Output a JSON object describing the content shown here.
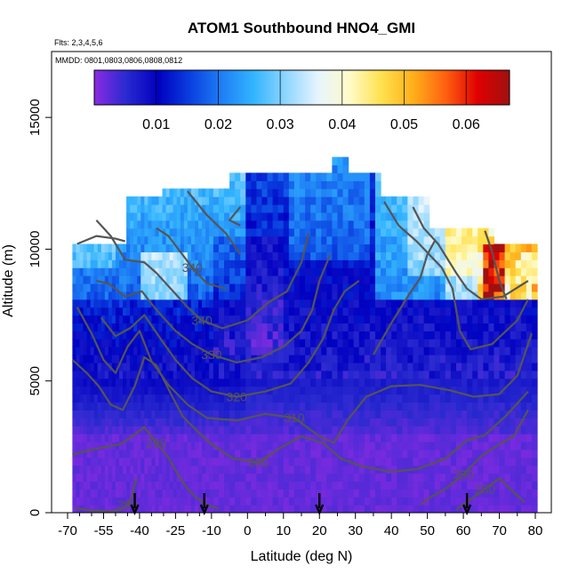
{
  "chart_data": {
    "type": "heatmap",
    "title": "ATOM1 Southbound HNO4_GMI",
    "subtitle_lines": [
      "Flts: 2,3,4,5,6",
      "MMDD: 0801,0803,0806,0808,0812"
    ],
    "xlabel": "Latitude (deg N)",
    "ylabel": "Altitude (m)",
    "xlim": [
      -70,
      80
    ],
    "ylim": [
      0,
      17500
    ],
    "x_ticks": [
      -70,
      -55,
      -40,
      -25,
      -10,
      0,
      10,
      20,
      30,
      40,
      50,
      60,
      70,
      80
    ],
    "y_ticks": [
      0,
      5000,
      10000,
      15000
    ],
    "colorbar": {
      "range": [
        0,
        0.067
      ],
      "ticks": [
        0.01,
        0.02,
        0.03,
        0.04,
        0.05,
        0.06
      ],
      "tick_labels": [
        "0.01",
        "0.02",
        "0.03",
        "0.04",
        "0.05",
        "0.06"
      ],
      "colors": [
        "#8a2be2",
        "#2a2ad0",
        "#0000c0",
        "#0a3fe0",
        "#1e7ff5",
        "#33b5ff",
        "#8fd6ff",
        "#e6f4ff",
        "#fffbc8",
        "#ffe14d",
        "#ffae1a",
        "#ff6010",
        "#e00000",
        "#a01010"
      ]
    },
    "flight_markers_lat": [
      -42,
      -13,
      20,
      61
    ],
    "contours": [
      {
        "label": "280",
        "points": [
          [
            -67,
            180
          ],
          [
            -60,
            80
          ],
          [
            -52,
            40
          ],
          [
            -48,
            120
          ],
          [
            -45,
            300
          ],
          [
            -43,
            650
          ],
          [
            -42,
            1100
          ],
          [
            -41,
            1300
          ]
        ]
      },
      {
        "label": "280",
        "points": [
          [
            77,
            400
          ],
          [
            73,
            900
          ],
          [
            70,
            1300
          ],
          [
            66,
            900
          ],
          [
            62,
            500
          ],
          [
            58,
            120
          ]
        ]
      },
      {
        "label": "290",
        "points": [
          [
            -68,
            2200
          ],
          [
            -62,
            2350
          ],
          [
            -54,
            2500
          ],
          [
            -48,
            2600
          ],
          [
            -43,
            2900
          ],
          [
            -38,
            3250
          ],
          [
            -33,
            2650
          ],
          [
            -28,
            2100
          ],
          [
            -24,
            1450
          ],
          [
            -20,
            900
          ],
          [
            -16,
            550
          ],
          [
            -12,
            300
          ],
          [
            -8,
            150
          ]
        ]
      },
      {
        "label": "290",
        "points": [
          [
            78,
            3900
          ],
          [
            74,
            2900
          ],
          [
            70,
            2600
          ],
          [
            65,
            2150
          ],
          [
            60,
            1450
          ],
          [
            55,
            900
          ],
          [
            51,
            600
          ],
          [
            48,
            300
          ]
        ]
      },
      {
        "label": "300",
        "points": [
          [
            -68,
            5800
          ],
          [
            -62,
            5300
          ],
          [
            -57,
            4800
          ],
          [
            -52,
            4100
          ],
          [
            -47,
            3900
          ],
          [
            -42,
            4800
          ],
          [
            -38,
            5900
          ],
          [
            -33,
            5600
          ],
          [
            -28,
            4700
          ],
          [
            -22,
            3650
          ],
          [
            -16,
            3100
          ],
          [
            -10,
            2600
          ],
          [
            -4,
            2050
          ],
          [
            3,
            1900
          ],
          [
            9,
            2450
          ],
          [
            15,
            2900
          ],
          [
            21,
            2650
          ],
          [
            26,
            2050
          ],
          [
            32,
            1750
          ],
          [
            40,
            1550
          ],
          [
            47,
            1650
          ],
          [
            55,
            2050
          ],
          [
            61,
            2750
          ],
          [
            66,
            2950
          ],
          [
            72,
            3700
          ],
          [
            78,
            4600
          ]
        ]
      },
      {
        "label": "310",
        "points": [
          [
            -66,
            7800
          ],
          [
            -60,
            6800
          ],
          [
            -55,
            5800
          ],
          [
            -50,
            5300
          ],
          [
            -45,
            6300
          ],
          [
            -40,
            6900
          ],
          [
            -35,
            5750
          ],
          [
            -28,
            4850
          ],
          [
            -20,
            4100
          ],
          [
            -12,
            3600
          ],
          [
            -3,
            3500
          ],
          [
            5,
            3750
          ],
          [
            13,
            3600
          ],
          [
            20,
            2900
          ],
          [
            24,
            2650
          ],
          [
            28,
            3550
          ],
          [
            33,
            4400
          ],
          [
            40,
            4800
          ],
          [
            48,
            4850
          ],
          [
            56,
            4650
          ],
          [
            63,
            4400
          ],
          [
            70,
            4500
          ],
          [
            75,
            5200
          ],
          [
            79,
            6800
          ]
        ]
      },
      {
        "label": "320",
        "points": [
          [
            -56,
            7400
          ],
          [
            -50,
            6700
          ],
          [
            -44,
            7000
          ],
          [
            -38,
            7500
          ],
          [
            -32,
            6700
          ],
          [
            -25,
            5800
          ],
          [
            -18,
            5100
          ],
          [
            -10,
            4600
          ],
          [
            -3,
            4400
          ],
          [
            5,
            4600
          ],
          [
            12,
            4900
          ],
          [
            17,
            5700
          ],
          [
            21,
            6600
          ],
          [
            24,
            7700
          ],
          [
            27,
            8400
          ],
          [
            31,
            8800
          ]
        ]
      },
      {
        "label": "330",
        "points": [
          [
            -58,
            8800
          ],
          [
            -53,
            8700
          ],
          [
            -46,
            8200
          ],
          [
            -39,
            8400
          ],
          [
            -33,
            7700
          ],
          [
            -25,
            6900
          ],
          [
            -18,
            6400
          ],
          [
            -10,
            6000
          ],
          [
            -3,
            5700
          ],
          [
            4,
            5900
          ],
          [
            10,
            6300
          ],
          [
            15,
            6900
          ],
          [
            18,
            7700
          ],
          [
            20,
            8800
          ],
          [
            23,
            9800
          ]
        ]
      },
      {
        "label": "340",
        "points": [
          [
            -58,
            11100
          ],
          [
            -52,
            10500
          ],
          [
            -46,
            9600
          ],
          [
            -38,
            9500
          ],
          [
            -33,
            9100
          ],
          [
            -27,
            8500
          ],
          [
            -20,
            7800
          ],
          [
            -14,
            7300
          ],
          [
            -7,
            7000
          ],
          [
            0,
            7300
          ],
          [
            6,
            8000
          ],
          [
            11,
            8400
          ],
          [
            15,
            9500
          ],
          [
            17,
            10600
          ]
        ]
      },
      {
        "label": "340",
        "points": [
          [
            -33,
            10800
          ],
          [
            -28,
            10500
          ],
          [
            -23,
            9900
          ],
          [
            -18,
            9300
          ],
          [
            -12,
            8700
          ],
          [
            -6,
            8500
          ]
        ]
      },
      {
        "label": "",
        "points": [
          [
            -20,
            12200
          ],
          [
            -12,
            11300
          ],
          [
            -6,
            10600
          ],
          [
            -2,
            9800
          ]
        ]
      },
      {
        "label": "",
        "points": [
          [
            -2,
            11600
          ],
          [
            -5,
            11100
          ],
          [
            -2,
            10900
          ]
        ]
      },
      {
        "label": "",
        "points": [
          [
            35,
            6000
          ],
          [
            40,
            7200
          ],
          [
            45,
            8300
          ],
          [
            48,
            8900
          ],
          [
            50,
            9800
          ],
          [
            52,
            10300
          ]
        ]
      },
      {
        "label": "",
        "points": [
          [
            38,
            11800
          ],
          [
            42,
            10900
          ],
          [
            47,
            10300
          ],
          [
            54,
            9300
          ],
          [
            57,
            8500
          ],
          [
            59,
            6900
          ],
          [
            62,
            6200
          ],
          [
            68,
            6400
          ],
          [
            75,
            7300
          ],
          [
            78,
            8100
          ]
        ]
      },
      {
        "label": "",
        "points": [
          [
            46,
            11600
          ],
          [
            49,
            10800
          ],
          [
            53,
            10200
          ],
          [
            58,
            9100
          ],
          [
            61,
            8500
          ],
          [
            65,
            8100
          ],
          [
            71,
            8200
          ],
          [
            78,
            8800
          ]
        ]
      },
      {
        "label": "",
        "points": [
          [
            66,
            10700
          ],
          [
            68,
            9900
          ],
          [
            70,
            8800
          ],
          [
            72,
            8100
          ]
        ]
      },
      {
        "label": "",
        "points": [
          [
            -66,
            10200
          ],
          [
            -58,
            10500
          ],
          [
            -50,
            10400
          ],
          [
            -46,
            10300
          ]
        ]
      }
    ],
    "legend": "colorbar-top"
  }
}
